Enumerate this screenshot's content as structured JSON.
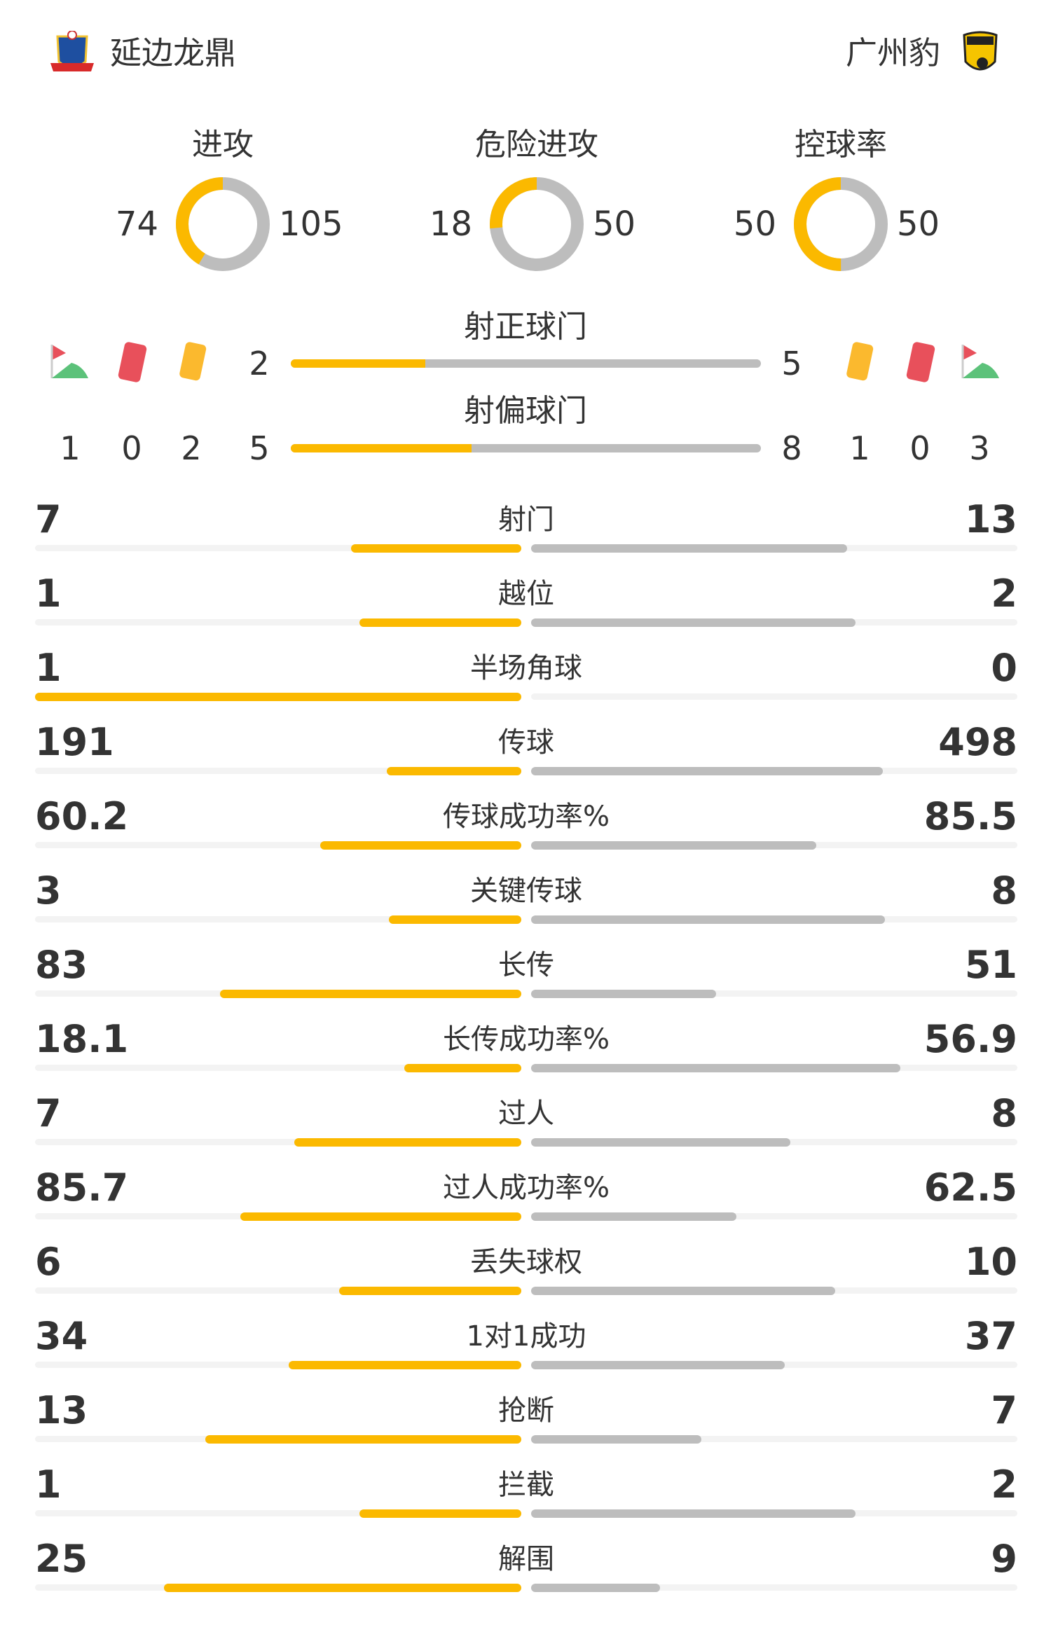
{
  "home": {
    "name": "延边龙鼎"
  },
  "away": {
    "name": "广州豹"
  },
  "colors": {
    "home": "#fbb900",
    "away": "#bdbdbd",
    "track": "#f3f3f3",
    "red_card": "#e8505b",
    "yellow_card": "#fbb92e",
    "corner_green": "#5cc27a"
  },
  "donuts": [
    {
      "title": "进攻",
      "home": "74",
      "away": "105"
    },
    {
      "title": "危险进攻",
      "home": "18",
      "away": "50"
    },
    {
      "title": "控球率",
      "home": "50",
      "away": "50"
    }
  ],
  "shots_on": {
    "label": "射正球门",
    "home": "2",
    "away": "5"
  },
  "shots_off": {
    "label": "射偏球门",
    "home": "5",
    "away": "8"
  },
  "home_events": {
    "corners": "1",
    "red_cards": "0",
    "yellow_cards": "2"
  },
  "away_events": {
    "yellow_cards": "1",
    "red_cards": "0",
    "corners": "3"
  },
  "stats": [
    {
      "label": "射门",
      "home": "7",
      "away": "13"
    },
    {
      "label": "越位",
      "home": "1",
      "away": "2"
    },
    {
      "label": "半场角球",
      "home": "1",
      "away": "0"
    },
    {
      "label": "传球",
      "home": "191",
      "away": "498"
    },
    {
      "label": "传球成功率%",
      "home": "60.2",
      "away": "85.5"
    },
    {
      "label": "关键传球",
      "home": "3",
      "away": "8"
    },
    {
      "label": "长传",
      "home": "83",
      "away": "51"
    },
    {
      "label": "长传成功率%",
      "home": "18.1",
      "away": "56.9"
    },
    {
      "label": "过人",
      "home": "7",
      "away": "8"
    },
    {
      "label": "过人成功率%",
      "home": "85.7",
      "away": "62.5"
    },
    {
      "label": "丢失球权",
      "home": "6",
      "away": "10"
    },
    {
      "label": "1对1成功",
      "home": "34",
      "away": "37"
    },
    {
      "label": "抢断",
      "home": "13",
      "away": "7"
    },
    {
      "label": "拦截",
      "home": "1",
      "away": "2"
    },
    {
      "label": "解围",
      "home": "25",
      "away": "9"
    }
  ]
}
